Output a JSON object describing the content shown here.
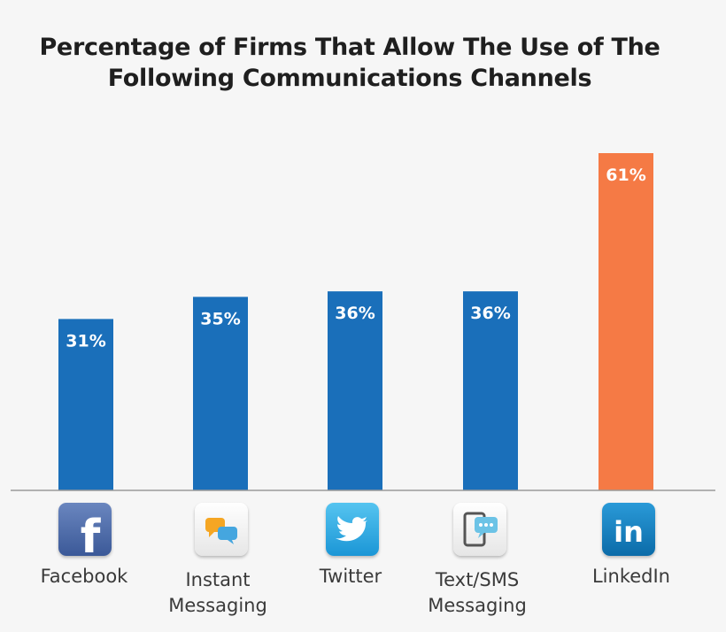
{
  "chart_data": {
    "type": "bar",
    "title_lines": [
      "Percentage of Firms That Allow The Use of The",
      "Following Communications Channels"
    ],
    "categories": [
      "Facebook",
      "Instant Messaging",
      "Twitter",
      "Text/SMS Messaging",
      "LinkedIn"
    ],
    "category_lines": [
      [
        "Facebook"
      ],
      [
        "Instant",
        "Messaging"
      ],
      [
        "Twitter"
      ],
      [
        "Text/SMS",
        "Messaging"
      ],
      [
        "LinkedIn"
      ]
    ],
    "values": [
      31,
      35,
      36,
      36,
      61
    ],
    "value_labels": [
      "31%",
      "35%",
      "36%",
      "36%",
      "61%"
    ],
    "bar_colors": [
      "#1a6fba",
      "#1a6fba",
      "#1a6fba",
      "#1a6fba",
      "#f57a45"
    ],
    "icons": [
      "facebook-icon",
      "instant-messaging-icon",
      "twitter-icon",
      "sms-icon",
      "linkedin-icon"
    ],
    "ylim": [
      0,
      61
    ],
    "grid": false,
    "legend": "none"
  }
}
